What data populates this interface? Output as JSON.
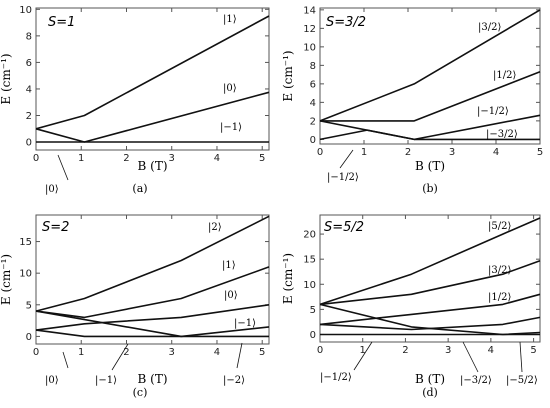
{
  "chart_data": [
    {
      "type": "line",
      "id": "a",
      "spin_label": "S=1",
      "caption": "(a)",
      "xlabel": "B (T)",
      "ylabel": "E (cm⁻¹)",
      "xlim": [
        0,
        5.15
      ],
      "ylim": [
        -0.6,
        10.1
      ],
      "xticks": [
        0,
        1,
        2,
        3,
        4,
        5
      ],
      "yticks": [
        0,
        2,
        4,
        6,
        8,
        10
      ],
      "series": [
        {
          "name": "|1⟩",
          "x": [
            0,
            1.07,
            5.15
          ],
          "y": [
            1.0,
            2.0,
            9.5
          ]
        },
        {
          "name": "|0⟩",
          "x": [
            0,
            1.07,
            5.15
          ],
          "y": [
            1.0,
            0.0,
            3.75
          ]
        },
        {
          "name": "|−1⟩",
          "x": [
            0,
            5.15
          ],
          "y": [
            0.0,
            0.0
          ]
        }
      ],
      "annotations": [
        {
          "text": "|1⟩"
        },
        {
          "text": "|0⟩"
        },
        {
          "text": "|−1⟩"
        },
        {
          "text": "|0⟩"
        }
      ]
    },
    {
      "type": "line",
      "id": "b",
      "spin_label": "S=3/2",
      "caption": "(b)",
      "xlabel": "B (T)",
      "ylabel": "E (cm⁻¹)",
      "xlim": [
        0,
        5.0
      ],
      "ylim": [
        -0.5,
        14.2
      ],
      "xticks": [
        0,
        1,
        2,
        3,
        4,
        5
      ],
      "yticks": [
        0,
        2,
        4,
        6,
        8,
        10,
        12,
        14
      ],
      "series": [
        {
          "name": "|3/2⟩",
          "x": [
            0,
            2.14,
            5.0
          ],
          "y": [
            2.0,
            6.0,
            14.0
          ]
        },
        {
          "name": "|1/2⟩",
          "x": [
            0,
            2.14,
            5.0
          ],
          "y": [
            2.0,
            2.0,
            7.3
          ]
        },
        {
          "name": "|−1/2⟩",
          "x": [
            0,
            1.07,
            2.14,
            5.0
          ],
          "y": [
            0.0,
            1.0,
            0.0,
            2.6
          ]
        },
        {
          "name": "|−3/2⟩",
          "x": [
            0,
            2.14,
            5.0
          ],
          "y": [
            2.0,
            0.0,
            0.0
          ]
        }
      ],
      "annotations": [
        {
          "text": "|3/2⟩"
        },
        {
          "text": "|1/2⟩"
        },
        {
          "text": "|−1/2⟩"
        },
        {
          "text": "|−3/2⟩"
        },
        {
          "text": "|−1/2⟩"
        }
      ]
    },
    {
      "type": "line",
      "id": "c",
      "spin_label": "S=2",
      "caption": "(c)",
      "xlabel": "B (T)",
      "ylabel": "E (cm⁻¹)",
      "xlim": [
        0,
        5.15
      ],
      "ylim": [
        -1.2,
        19.2
      ],
      "xticks": [
        0,
        1,
        2,
        3,
        4,
        5
      ],
      "yticks": [
        0,
        5,
        10,
        15
      ],
      "series": [
        {
          "name": "|2⟩",
          "x": [
            0,
            1.07,
            3.21,
            5.15
          ],
          "y": [
            4.0,
            6.0,
            12.0,
            19.0
          ]
        },
        {
          "name": "|1⟩",
          "x": [
            0,
            1.07,
            3.21,
            5.15
          ],
          "y": [
            4.0,
            3.0,
            6.0,
            11.0
          ]
        },
        {
          "name": "|0⟩",
          "x": [
            0,
            1.07,
            3.21,
            5.15
          ],
          "y": [
            1.0,
            2.0,
            3.0,
            5.0
          ]
        },
        {
          "name": "|−1⟩",
          "x": [
            0,
            1.07,
            3.21,
            5.15
          ],
          "y": [
            1.0,
            0.0,
            0.0,
            1.5
          ]
        },
        {
          "name": "|−2⟩",
          "x": [
            0,
            3.21,
            5.15
          ],
          "y": [
            4.0,
            0.0,
            0.0
          ]
        }
      ],
      "annotations": [
        {
          "text": "|2⟩"
        },
        {
          "text": "|1⟩"
        },
        {
          "text": "|0⟩"
        },
        {
          "text": "|−1⟩"
        },
        {
          "text": "|0⟩"
        },
        {
          "text": "|−1⟩"
        },
        {
          "text": "|−2⟩"
        }
      ]
    },
    {
      "type": "line",
      "id": "d",
      "spin_label": "S=5/2",
      "caption": "(d)",
      "xlabel": "B (T)",
      "ylabel": "E (cm⁻¹)",
      "xlim": [
        0,
        5.15
      ],
      "ylim": [
        -1.5,
        23.8
      ],
      "xticks": [
        0,
        1,
        2,
        3,
        4,
        5
      ],
      "yticks": [
        0,
        5,
        10,
        15,
        20
      ],
      "series": [
        {
          "name": "|5/2⟩",
          "x": [
            0,
            2.14,
            4.28,
            5.15
          ],
          "y": [
            6.0,
            12.0,
            20.0,
            23.2
          ]
        },
        {
          "name": "|3/2⟩",
          "x": [
            0,
            2.14,
            4.28,
            5.15
          ],
          "y": [
            6.0,
            8.0,
            12.0,
            14.7
          ]
        },
        {
          "name": "|1/2⟩",
          "x": [
            0,
            2.14,
            4.28,
            5.15
          ],
          "y": [
            2.0,
            4.0,
            6.0,
            8.0
          ]
        },
        {
          "name": "|−1/2⟩",
          "x": [
            0,
            2.14,
            4.28,
            5.15
          ],
          "y": [
            2.0,
            1.0,
            2.0,
            3.4
          ]
        },
        {
          "name": "|−3/2⟩",
          "x": [
            0,
            2.14,
            4.28,
            5.15
          ],
          "y": [
            6.0,
            1.5,
            0.0,
            0.4
          ]
        },
        {
          "name": "|−5/2⟩",
          "x": [
            0,
            4.28,
            5.15
          ],
          "y": [
            0.0,
            0.0,
            0.0
          ]
        }
      ],
      "annotations": [
        {
          "text": "|5/2⟩"
        },
        {
          "text": "|3/2⟩"
        },
        {
          "text": "|1/2⟩"
        },
        {
          "text": "|−1/2⟩"
        },
        {
          "text": "|−3/2⟩"
        },
        {
          "text": "|−5/2⟩"
        }
      ]
    }
  ]
}
